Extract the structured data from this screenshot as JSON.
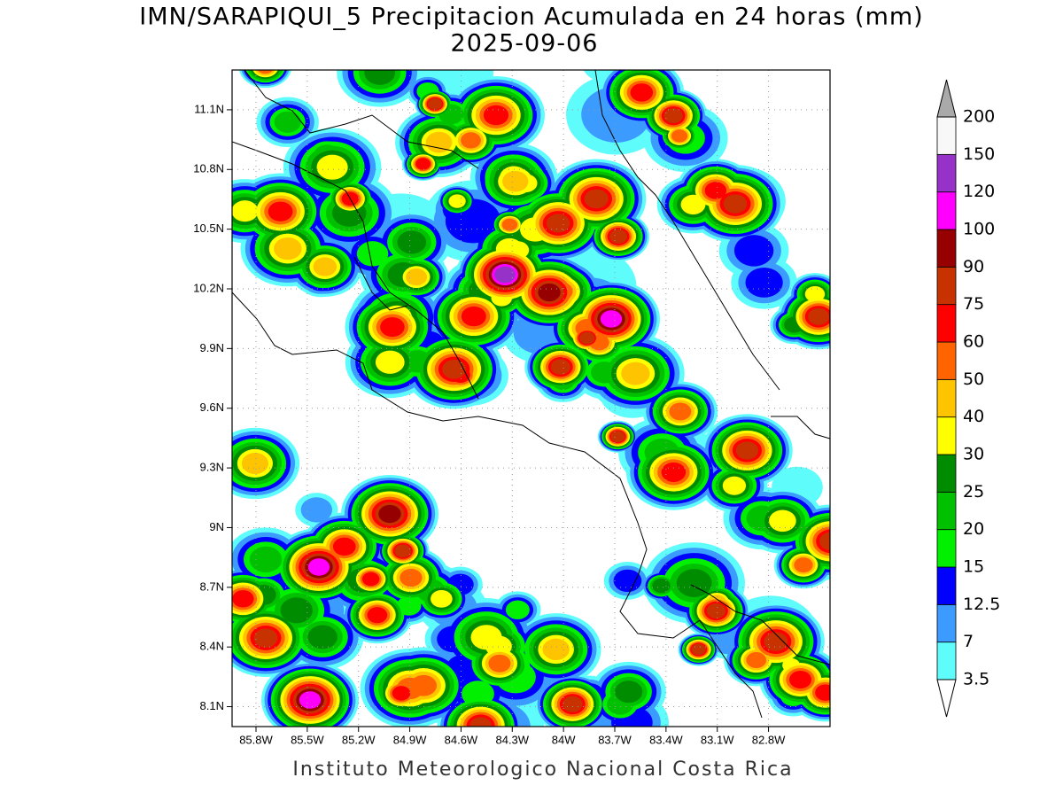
{
  "map": {
    "title": "IMN/SARAPIQUI_5 Precipitacion Acumulada en 24 horas (mm)",
    "date": "2025-09-06",
    "xlim": [
      -85.94,
      -82.44
    ],
    "ylim": [
      8.0,
      11.3
    ],
    "lat_ticks": [
      {
        "value": 11.1,
        "label": "11.1N"
      },
      {
        "value": 10.8,
        "label": "10.8N"
      },
      {
        "value": 10.5,
        "label": "10.5N"
      },
      {
        "value": 10.2,
        "label": "10.2N"
      },
      {
        "value": 9.9,
        "label": "9.9N"
      },
      {
        "value": 9.6,
        "label": "9.6N"
      },
      {
        "value": 9.3,
        "label": "9.3N"
      },
      {
        "value": 9.0,
        "label": "9N"
      },
      {
        "value": 8.7,
        "label": "8.7N"
      },
      {
        "value": 8.4,
        "label": "8.4N"
      },
      {
        "value": 8.1,
        "label": "8.1N"
      }
    ],
    "lon_ticks": [
      {
        "value": -85.8,
        "label": "85.8W"
      },
      {
        "value": -85.5,
        "label": "85.5W"
      },
      {
        "value": -85.2,
        "label": "85.2W"
      },
      {
        "value": -84.9,
        "label": "84.9W"
      },
      {
        "value": -84.6,
        "label": "84.6W"
      },
      {
        "value": -84.3,
        "label": "84.3W"
      },
      {
        "value": -84.0,
        "label": "84W"
      },
      {
        "value": -83.7,
        "label": "83.7W"
      },
      {
        "value": -83.4,
        "label": "83.4W"
      },
      {
        "value": -83.1,
        "label": "83.1W"
      },
      {
        "value": -82.8,
        "label": "82.8W"
      }
    ],
    "colorbar": {
      "levels": [
        3.5,
        7,
        12.5,
        15,
        20,
        25,
        30,
        40,
        50,
        60,
        75,
        90,
        100,
        120,
        150,
        200
      ],
      "colors": [
        "#5ffcfc",
        "#3c9bff",
        "#0000ff",
        "#00f000",
        "#00c000",
        "#008c00",
        "#ffff00",
        "#ffc400",
        "#ff6400",
        "#ff0000",
        "#c83200",
        "#960000",
        "#ff00ff",
        "#9632c8",
        "#f8f8f8"
      ],
      "under_color": "#ffffff",
      "over_color": "#aaaaaa"
    },
    "footer": "Instituto Meteorologico Nacional Costa Rica"
  }
}
